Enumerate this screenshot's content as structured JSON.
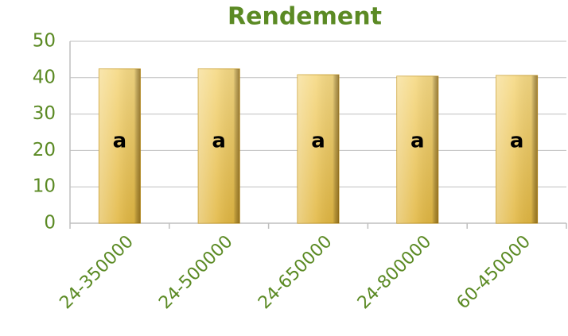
{
  "chart_data": {
    "type": "bar",
    "title": "Rendement",
    "categories": [
      "24-350000",
      "24-500000",
      "24-650000",
      "24-800000",
      "60-450000"
    ],
    "values": [
      42.4,
      42.4,
      40.8,
      40.4,
      40.6
    ],
    "annotations": [
      "a",
      "a",
      "a",
      "a",
      "a"
    ],
    "color": "#f2cc5a",
    "ylim": [
      0,
      50
    ],
    "yticks": [
      0,
      10,
      20,
      30,
      40,
      50
    ],
    "grid": true
  }
}
